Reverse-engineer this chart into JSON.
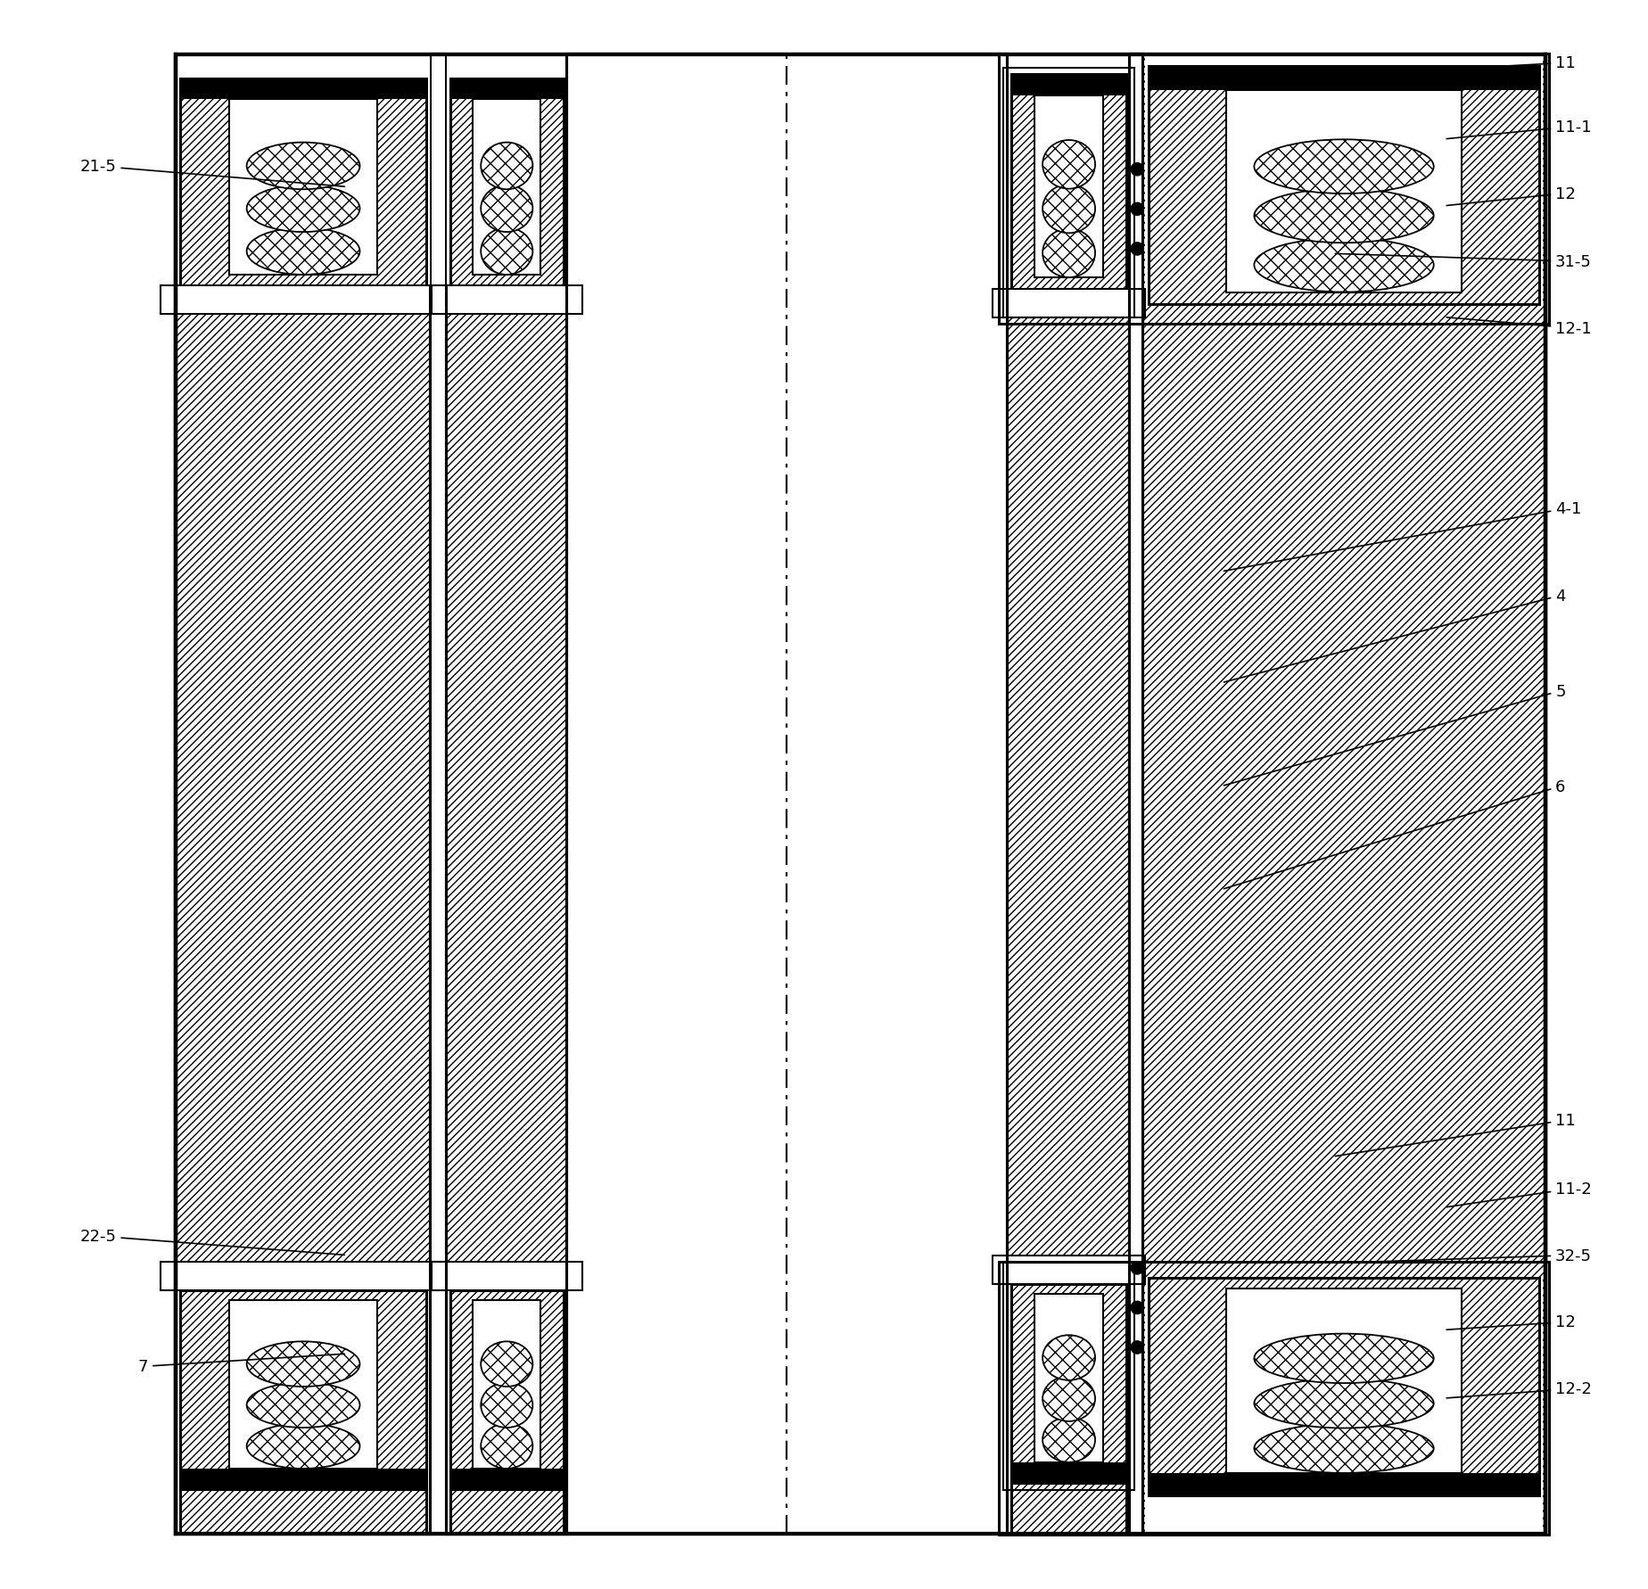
{
  "bg_color": "#ffffff",
  "fig_width": 18.48,
  "fig_height": 17.83,
  "annotations_left": [
    {
      "label": "21-5",
      "xt": 0.055,
      "yt": 0.895,
      "xa": 0.2,
      "ya": 0.882
    },
    {
      "label": "22-5",
      "xt": 0.055,
      "yt": 0.222,
      "xa": 0.2,
      "ya": 0.21
    },
    {
      "label": "7",
      "xt": 0.075,
      "yt": 0.14,
      "xa": 0.2,
      "ya": 0.148
    }
  ],
  "annotations_right": [
    {
      "label": "11",
      "xt": 0.96,
      "yt": 0.96,
      "xa": 0.82,
      "ya": 0.952
    },
    {
      "label": "11-1",
      "xt": 0.96,
      "yt": 0.92,
      "xa": 0.89,
      "ya": 0.912
    },
    {
      "label": "12",
      "xt": 0.96,
      "yt": 0.878,
      "xa": 0.89,
      "ya": 0.87
    },
    {
      "label": "31-5",
      "xt": 0.96,
      "yt": 0.835,
      "xa": 0.82,
      "ya": 0.84
    },
    {
      "label": "12-1",
      "xt": 0.96,
      "yt": 0.793,
      "xa": 0.89,
      "ya": 0.8
    },
    {
      "label": "4-1",
      "xt": 0.96,
      "yt": 0.68,
      "xa": 0.75,
      "ya": 0.64
    },
    {
      "label": "4",
      "xt": 0.96,
      "yt": 0.625,
      "xa": 0.75,
      "ya": 0.57
    },
    {
      "label": "5",
      "xt": 0.96,
      "yt": 0.565,
      "xa": 0.75,
      "ya": 0.505
    },
    {
      "label": "6",
      "xt": 0.96,
      "yt": 0.505,
      "xa": 0.75,
      "ya": 0.44
    },
    {
      "label": "11",
      "xt": 0.96,
      "yt": 0.295,
      "xa": 0.82,
      "ya": 0.272
    },
    {
      "label": "11-2",
      "xt": 0.96,
      "yt": 0.252,
      "xa": 0.89,
      "ya": 0.24
    },
    {
      "label": "32-5",
      "xt": 0.96,
      "yt": 0.21,
      "xa": 0.82,
      "ya": 0.205
    },
    {
      "label": "12",
      "xt": 0.96,
      "yt": 0.168,
      "xa": 0.89,
      "ya": 0.163
    },
    {
      "label": "12-2",
      "xt": 0.96,
      "yt": 0.126,
      "xa": 0.89,
      "ya": 0.12
    }
  ]
}
